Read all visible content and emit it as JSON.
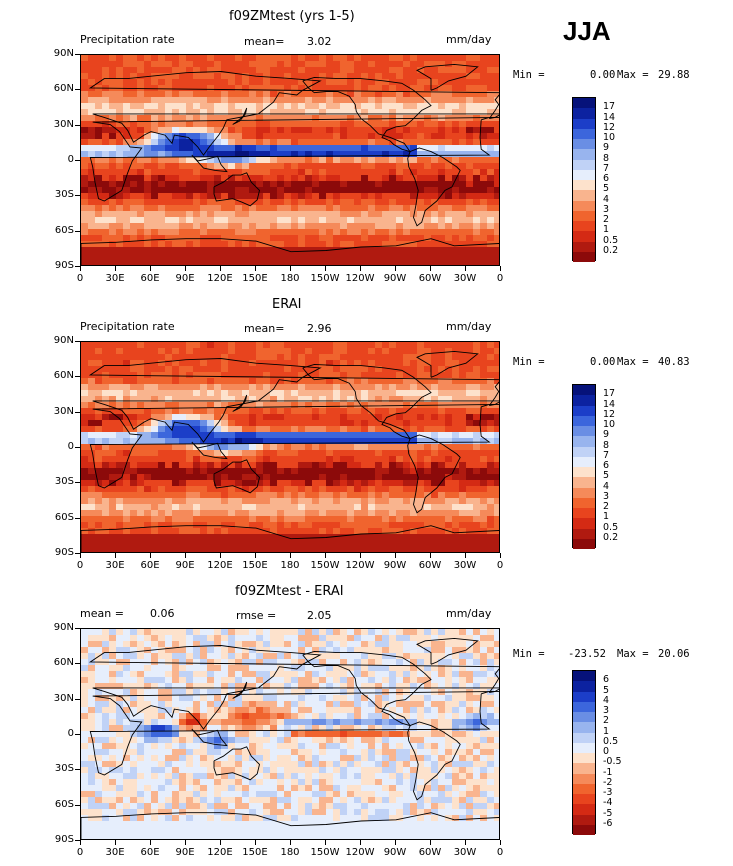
{
  "season": "JJA",
  "panels": [
    {
      "title": "f09ZMtest (yrs 1-5)",
      "left_label": "Precipitation rate",
      "stat1_label": "mean=",
      "stat1_value": "3.02",
      "units": "mm/day",
      "min_label": "Min =",
      "min_value": "0.00",
      "max_label": "Max =",
      "max_value": "29.88",
      "kind": "abs"
    },
    {
      "title": "ERAI",
      "left_label": "Precipitation rate",
      "stat1_label": "mean=",
      "stat1_value": "2.96",
      "units": "mm/day",
      "min_label": "Min =",
      "min_value": "0.00",
      "max_label": "Max =",
      "max_value": "40.83",
      "kind": "abs"
    },
    {
      "title": "f09ZMtest - ERAI",
      "left_label": "mean =",
      "left_value": "0.06",
      "stat1_label": "rmse =",
      "stat1_value": "2.05",
      "units": "mm/day",
      "min_label": "Min =",
      "min_value": "-23.52",
      "max_label": "Max =",
      "max_value": "20.06",
      "kind": "diff"
    }
  ],
  "chart_data": {
    "type": "heatmap",
    "variable": "Precipitation rate",
    "units": "mm/day",
    "x_ticks": [
      "0",
      "30E",
      "60E",
      "90E",
      "120E",
      "150E",
      "180",
      "150W",
      "120W",
      "90W",
      "60W",
      "30W",
      "0"
    ],
    "y_ticks": [
      "90N",
      "60N",
      "30N",
      "0",
      "30S",
      "60S",
      "90S"
    ],
    "xlim": [
      0,
      360
    ],
    "ylim": [
      -90,
      90
    ],
    "abs_levels": [
      "17",
      "14",
      "12",
      "10",
      "9",
      "8",
      "7",
      "6",
      "5",
      "4",
      "3",
      "2",
      "1",
      "0.5",
      "0.2"
    ],
    "abs_colors": [
      "#8c0a0a",
      "#b01a10",
      "#d42a14",
      "#e8441e",
      "#f0642e",
      "#f58a5a",
      "#f9b48e",
      "#fde2cc",
      "#e6eefc",
      "#c0d2f6",
      "#98b4ee",
      "#6a8ee4",
      "#3c66dc",
      "#1c3ec8",
      "#0c22a0",
      "#06127a"
    ],
    "diff_levels": [
      "6",
      "5",
      "4",
      "3",
      "2",
      "1",
      "0.5",
      "0",
      "-0.5",
      "-1",
      "-2",
      "-3",
      "-4",
      "-5",
      "-6"
    ],
    "diff_colors": [
      "#8c0a0a",
      "#b01a10",
      "#d42a14",
      "#e8441e",
      "#f0642e",
      "#f58a5a",
      "#f9b48e",
      "#fde2cc",
      "#e6eefc",
      "#c0d2f6",
      "#98b4ee",
      "#6a8ee4",
      "#3c66dc",
      "#1c3ec8",
      "#0c22a0",
      "#06127a"
    ]
  }
}
